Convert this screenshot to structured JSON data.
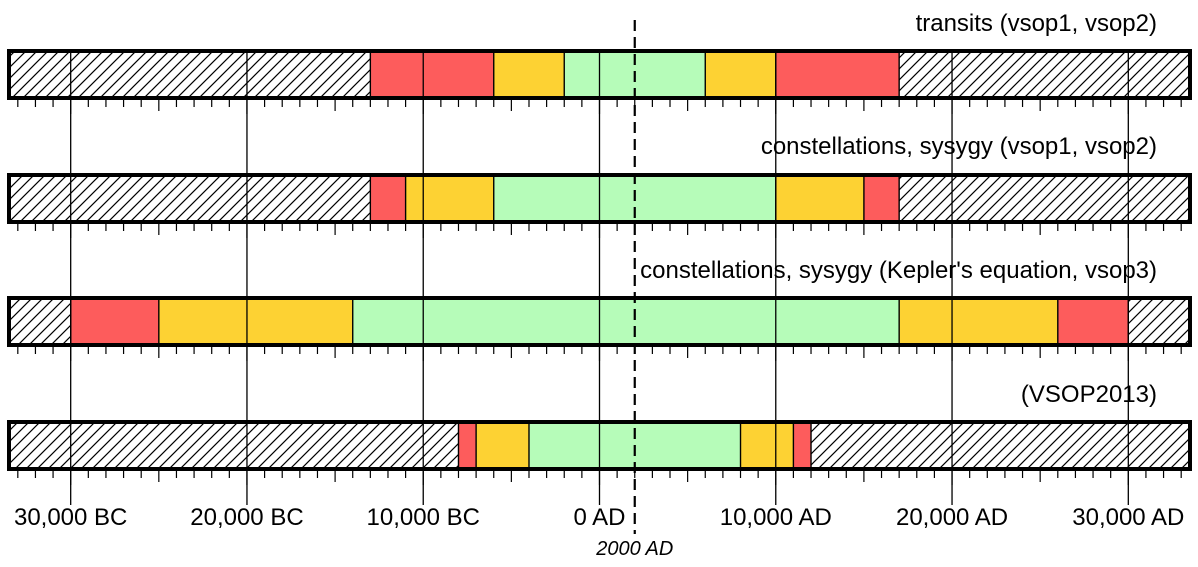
{
  "colors": {
    "red": "#fd5c5c",
    "yellow": "#fdd233",
    "green": "#b6fcb9",
    "outline": "#000000",
    "hatch_background": "#ffffff"
  },
  "axis": {
    "min_year": -33500,
    "max_year": 33500,
    "major_ticks": [
      -30000,
      -20000,
      -10000,
      0,
      10000,
      20000,
      30000
    ],
    "major_labels": [
      "30,000 BC",
      "20,000 BC",
      "10,000 BC",
      "0 AD",
      "10,000 AD",
      "20,000 AD",
      "30,000 AD"
    ],
    "minor_tick_step": 1000,
    "marker_year": 2000,
    "marker_label": "2000 AD"
  },
  "bars": [
    {
      "title": "transits (vsop1, vsop2)",
      "segments": [
        {
          "from": -13000,
          "to": -6000,
          "color": "red"
        },
        {
          "from": -6000,
          "to": -2000,
          "color": "yellow"
        },
        {
          "from": -2000,
          "to": 6000,
          "color": "green"
        },
        {
          "from": 6000,
          "to": 10000,
          "color": "yellow"
        },
        {
          "from": 10000,
          "to": 17000,
          "color": "red"
        }
      ]
    },
    {
      "title": "constellations, sysygy (vsop1, vsop2)",
      "segments": [
        {
          "from": -13000,
          "to": -11000,
          "color": "red"
        },
        {
          "from": -11000,
          "to": -6000,
          "color": "yellow"
        },
        {
          "from": -6000,
          "to": 10000,
          "color": "green"
        },
        {
          "from": 10000,
          "to": 15000,
          "color": "yellow"
        },
        {
          "from": 15000,
          "to": 17000,
          "color": "red"
        }
      ]
    },
    {
      "title": "constellations, sysygy (Kepler's equation, vsop3)",
      "segments": [
        {
          "from": -30000,
          "to": -25000,
          "color": "red"
        },
        {
          "from": -25000,
          "to": -14000,
          "color": "yellow"
        },
        {
          "from": -14000,
          "to": 17000,
          "color": "green"
        },
        {
          "from": 17000,
          "to": 26000,
          "color": "yellow"
        },
        {
          "from": 26000,
          "to": 30000,
          "color": "red"
        }
      ]
    },
    {
      "title": "(VSOP2013)",
      "segments": [
        {
          "from": -8000,
          "to": -7000,
          "color": "red"
        },
        {
          "from": -7000,
          "to": -4000,
          "color": "yellow"
        },
        {
          "from": -4000,
          "to": 8000,
          "color": "green"
        },
        {
          "from": 8000,
          "to": 11000,
          "color": "yellow"
        },
        {
          "from": 11000,
          "to": 12000,
          "color": "red"
        }
      ]
    }
  ]
}
